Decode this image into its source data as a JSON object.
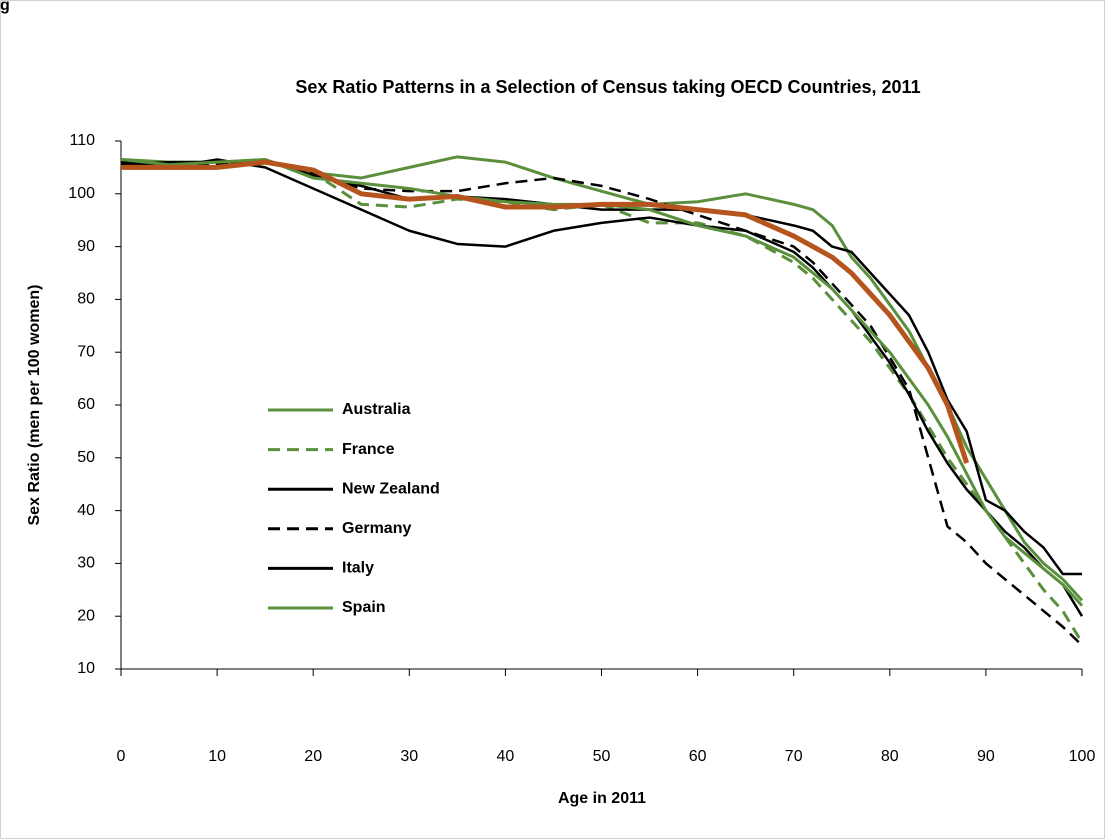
{
  "corner_text": "g",
  "chart_data": {
    "type": "line",
    "title": "Sex Ratio Patterns in a Selection of Census taking OECD Countries, 2011",
    "x_label": "Age in 2011",
    "y_label": "Sex Ratio (men per 100 women)",
    "x": [
      0,
      5,
      10,
      15,
      20,
      25,
      30,
      35,
      40,
      45,
      50,
      55,
      60,
      65,
      70,
      72,
      74,
      76,
      78,
      80,
      82,
      84,
      86,
      88,
      90,
      92,
      94,
      96,
      98,
      100
    ],
    "xlim": [
      0,
      100
    ],
    "xticks": [
      0,
      10,
      20,
      30,
      40,
      50,
      60,
      70,
      80,
      90,
      100
    ],
    "ylim": [
      10,
      110
    ],
    "yticks": [
      10,
      20,
      30,
      40,
      50,
      60,
      70,
      80,
      90,
      100,
      110
    ],
    "series": [
      {
        "name": "Australia",
        "color": "#5a8f3c",
        "dashed": false,
        "width": 3,
        "values": [
          106.5,
          106,
          106,
          106,
          104,
          103,
          105,
          107,
          106,
          103,
          100.5,
          98,
          98.5,
          100,
          98,
          97,
          94,
          88,
          84,
          79,
          74,
          67,
          60,
          52,
          46,
          40,
          34,
          30,
          27,
          23
        ]
      },
      {
        "name": "France",
        "color": "#5a8f3c",
        "dashed": true,
        "width": 3,
        "values": [
          106,
          105,
          105.5,
          106,
          104,
          98,
          97.5,
          99,
          98.5,
          97,
          98,
          94.5,
          94.5,
          92,
          87,
          84,
          80,
          76,
          72,
          67,
          62,
          56,
          50,
          45,
          40,
          35,
          30,
          25,
          21,
          15
        ]
      },
      {
        "name": "New Zealand",
        "color": "#000000",
        "dashed": false,
        "width": 2.5,
        "values": [
          106,
          105,
          106.5,
          105,
          101,
          97,
          93,
          90.5,
          90,
          93,
          94.5,
          95.5,
          94,
          93,
          89,
          86,
          82,
          78,
          73,
          68,
          62,
          55,
          49,
          44,
          40,
          36,
          33,
          29,
          26,
          20
        ]
      },
      {
        "name": "Germany",
        "color": "#000000",
        "dashed": true,
        "width": 2.5,
        "values": [
          105.5,
          105.5,
          105.5,
          106,
          104,
          101,
          100.5,
          100.5,
          102,
          103,
          101.5,
          99,
          96,
          93,
          90,
          87,
          83,
          79,
          75,
          69,
          63,
          50,
          37,
          34,
          30,
          27,
          24,
          21,
          18,
          14.5
        ]
      },
      {
        "name": "Italy",
        "color": "#000000",
        "dashed": false,
        "width": 2.5,
        "values": [
          105.5,
          106,
          106,
          106.5,
          103.5,
          101.5,
          99,
          99.5,
          99,
          98,
          97,
          97,
          97,
          96,
          94,
          93,
          90,
          89,
          85,
          81,
          77,
          70,
          61,
          55,
          42,
          40,
          36,
          33,
          28,
          28
        ]
      },
      {
        "name": "Spain",
        "color": "#5a8f3c",
        "dashed": false,
        "width": 3,
        "values": [
          106.5,
          105.5,
          106,
          106.5,
          103,
          102,
          101,
          99.5,
          98.5,
          98,
          98,
          97,
          94,
          92,
          88,
          85,
          82,
          78,
          74,
          70,
          65,
          60,
          54,
          47,
          40,
          35,
          32,
          29,
          26,
          22
        ]
      },
      {
        "color": "#b5541c",
        "dashed": false,
        "width": 5,
        "values": [
          105,
          105,
          105,
          106,
          104.5,
          100,
          99,
          99.5,
          97.5,
          97.5,
          98,
          98,
          97,
          96,
          92,
          90,
          88,
          85,
          81,
          77,
          72,
          67,
          60,
          49,
          null,
          null,
          null,
          null,
          null,
          null
        ]
      }
    ]
  }
}
